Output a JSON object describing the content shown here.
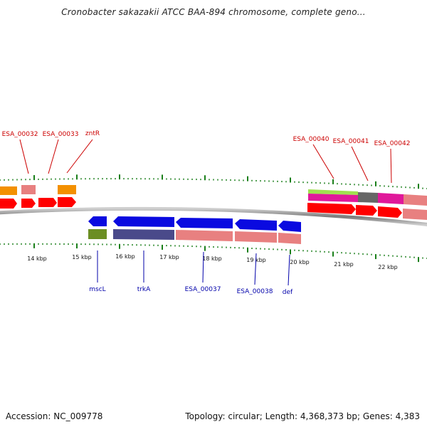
{
  "title": "Cronobacter sakazakii ATCC BAA-894 chromosome, complete geno...",
  "scale": {
    "kbp_labels": [
      "14 kbp",
      "15 kbp",
      "16 kbp",
      "17 kbp",
      "18 kbp",
      "19 kbp",
      "20 kbp",
      "21 kbp",
      "22 kbp"
    ]
  },
  "gene_labels": {
    "top": [
      "ESA_00032",
      "ESA_00033",
      "zntR",
      "ESA_00040",
      "ESA_00041",
      "ESA_00042"
    ],
    "bottom": [
      "mscL",
      "trkA",
      "ESA_00037",
      "ESA_00038",
      "def"
    ]
  },
  "colors": {
    "label_top": "#cc0000",
    "label_bottom": "#0000aa",
    "tick": "#1a7f1a",
    "backbone": "#7a7a7a",
    "forward_gene": "#ff0000",
    "reverse_gene": "#0a0ae0",
    "pink": "#e88080",
    "orange": "#f39000",
    "olive": "#6b8e23",
    "navy": "#4a4a8a",
    "magenta": "#e0189a",
    "lime": "#a0e050",
    "gray": "#666666"
  },
  "footer": {
    "accession": "Accession: NC_009778",
    "topology": "Topology: circular; Length: 4,368,373 bp; Genes: 4,383"
  }
}
